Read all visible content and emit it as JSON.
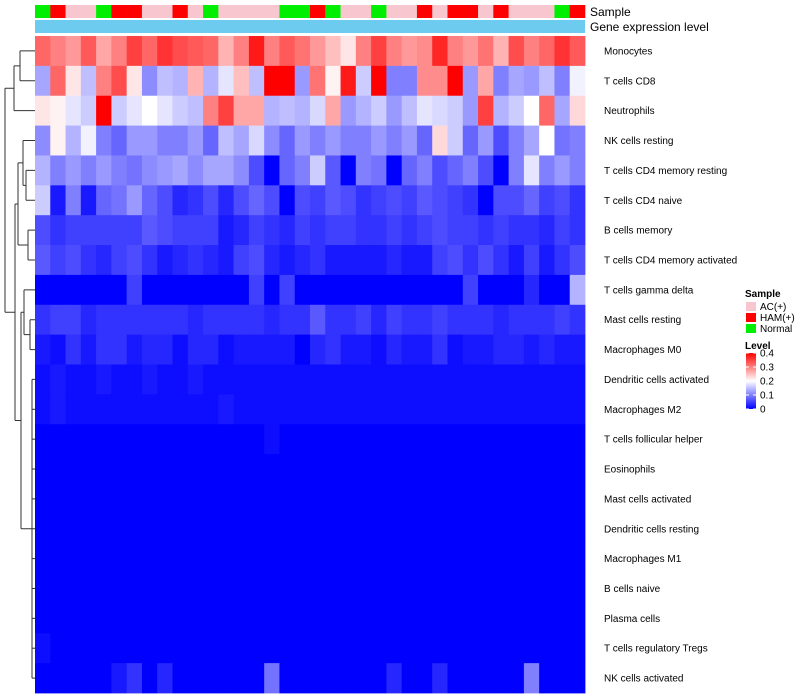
{
  "chart_data": {
    "type": "heatmap",
    "title": "",
    "annotation_labels": [
      "Sample",
      "Gene expression level"
    ],
    "sample_groups": [
      "Normal",
      "HAM(+)",
      "AC(+)",
      "AC(+)",
      "Normal",
      "HAM(+)",
      "HAM(+)",
      "AC(+)",
      "AC(+)",
      "HAM(+)",
      "AC(+)",
      "Normal",
      "AC(+)",
      "AC(+)",
      "AC(+)",
      "AC(+)",
      "Normal",
      "Normal",
      "HAM(+)",
      "Normal",
      "AC(+)",
      "AC(+)",
      "Normal",
      "AC(+)",
      "AC(+)",
      "HAM(+)",
      "AC(+)",
      "HAM(+)",
      "HAM(+)",
      "AC(+)",
      "HAM(+)",
      "AC(+)",
      "AC(+)",
      "AC(+)",
      "Normal",
      "HAM(+)"
    ],
    "group_colors": {
      "AC(+)": "#f7c6ce",
      "HAM(+)": "#ff0000",
      "Normal": "#00ee00"
    },
    "annotation_bar_color": "#6ecbf0",
    "rows": [
      "Monocytes",
      "T cells CD8",
      "Neutrophils",
      "NK cells resting",
      "T cells CD4 memory resting",
      "T cells CD4 naive",
      "B cells memory",
      "T cells CD4 memory activated",
      "T cells gamma delta",
      "Mast cells resting",
      "Macrophages M0",
      "Dendritic cells activated",
      "Macrophages M2",
      "T cells follicular helper",
      "Eosinophils",
      "Mast cells activated",
      "Dendritic cells resting",
      "Macrophages M1",
      "B cells naive",
      "Plasma cells",
      "T cells regulatory  Tregs",
      "NK cells activated"
    ],
    "values": [
      [
        0.32,
        0.3,
        0.28,
        0.33,
        0.27,
        0.3,
        0.35,
        0.32,
        0.36,
        0.34,
        0.33,
        0.32,
        0.26,
        0.3,
        0.38,
        0.3,
        0.33,
        0.31,
        0.28,
        0.25,
        0.22,
        0.3,
        0.35,
        0.3,
        0.28,
        0.29,
        0.37,
        0.3,
        0.28,
        0.31,
        0.26,
        0.34,
        0.3,
        0.32,
        0.36,
        0.33
      ],
      [
        0.13,
        0.32,
        0.22,
        0.15,
        0.3,
        0.34,
        0.22,
        0.11,
        0.15,
        0.14,
        0.26,
        0.14,
        0.18,
        0.25,
        0.15,
        0.4,
        0.4,
        0.12,
        0.31,
        0.21,
        0.38,
        0.16,
        0.4,
        0.1,
        0.1,
        0.29,
        0.29,
        0.4,
        0.12,
        0.27,
        0.1,
        0.13,
        0.12,
        0.15,
        0.1,
        0.19
      ],
      [
        0.22,
        0.21,
        0.18,
        0.16,
        0.4,
        0.16,
        0.18,
        0.2,
        0.18,
        0.16,
        0.15,
        0.3,
        0.35,
        0.27,
        0.27,
        0.14,
        0.15,
        0.14,
        0.17,
        0.27,
        0.12,
        0.14,
        0.16,
        0.12,
        0.15,
        0.18,
        0.17,
        0.16,
        0.12,
        0.35,
        0.14,
        0.16,
        0.2,
        0.32,
        0.13,
        0.23
      ],
      [
        0.11,
        0.21,
        0.14,
        0.19,
        0.1,
        0.08,
        0.12,
        0.12,
        0.1,
        0.1,
        0.12,
        0.08,
        0.15,
        0.13,
        0.17,
        0.11,
        0.08,
        0.12,
        0.1,
        0.12,
        0.1,
        0.1,
        0.12,
        0.1,
        0.12,
        0.08,
        0.23,
        0.16,
        0.08,
        0.12,
        0.06,
        0.1,
        0.13,
        0.2,
        0.09,
        0.1
      ],
      [
        0.14,
        0.1,
        0.12,
        0.1,
        0.12,
        0.1,
        0.09,
        0.11,
        0.12,
        0.13,
        0.11,
        0.13,
        0.13,
        0.11,
        0.06,
        0.0,
        0.08,
        0.1,
        0.16,
        0.07,
        0.0,
        0.1,
        0.09,
        0.0,
        0.08,
        0.1,
        0.06,
        0.08,
        0.1,
        0.06,
        0.0,
        0.1,
        0.18,
        0.1,
        0.12,
        0.1
      ],
      [
        0.16,
        0.02,
        0.1,
        0.02,
        0.08,
        0.09,
        0.12,
        0.08,
        0.06,
        0.03,
        0.04,
        0.06,
        0.03,
        0.06,
        0.08,
        0.06,
        0.0,
        0.06,
        0.05,
        0.07,
        0.06,
        0.04,
        0.05,
        0.06,
        0.05,
        0.07,
        0.06,
        0.05,
        0.04,
        0.0,
        0.06,
        0.06,
        0.08,
        0.05,
        0.06,
        0.04
      ],
      [
        0.06,
        0.04,
        0.05,
        0.05,
        0.05,
        0.05,
        0.05,
        0.07,
        0.06,
        0.05,
        0.05,
        0.05,
        0.02,
        0.03,
        0.05,
        0.04,
        0.03,
        0.05,
        0.04,
        0.05,
        0.05,
        0.04,
        0.04,
        0.05,
        0.04,
        0.05,
        0.06,
        0.05,
        0.05,
        0.04,
        0.05,
        0.04,
        0.04,
        0.03,
        0.05,
        0.04
      ],
      [
        0.07,
        0.05,
        0.06,
        0.04,
        0.03,
        0.05,
        0.06,
        0.04,
        0.02,
        0.03,
        0.04,
        0.03,
        0.02,
        0.05,
        0.06,
        0.03,
        0.02,
        0.03,
        0.04,
        0.02,
        0.02,
        0.02,
        0.02,
        0.03,
        0.02,
        0.02,
        0.05,
        0.06,
        0.04,
        0.06,
        0.04,
        0.02,
        0.05,
        0.02,
        0.04,
        0.06
      ],
      [
        0.0,
        0.0,
        0.0,
        0.0,
        0.0,
        0.0,
        0.05,
        0.0,
        0.0,
        0.0,
        0.0,
        0.0,
        0.0,
        0.0,
        0.05,
        0.0,
        0.05,
        0.0,
        0.0,
        0.0,
        0.0,
        0.0,
        0.0,
        0.0,
        0.0,
        0.0,
        0.0,
        0.0,
        0.05,
        0.0,
        0.0,
        0.0,
        0.03,
        0.0,
        0.0,
        0.14
      ],
      [
        0.04,
        0.05,
        0.05,
        0.03,
        0.04,
        0.04,
        0.04,
        0.04,
        0.04,
        0.04,
        0.03,
        0.04,
        0.04,
        0.04,
        0.04,
        0.03,
        0.04,
        0.04,
        0.07,
        0.04,
        0.04,
        0.05,
        0.03,
        0.05,
        0.04,
        0.04,
        0.05,
        0.04,
        0.04,
        0.04,
        0.03,
        0.04,
        0.04,
        0.04,
        0.05,
        0.04
      ],
      [
        0.02,
        0.01,
        0.04,
        0.02,
        0.04,
        0.04,
        0.02,
        0.03,
        0.03,
        0.01,
        0.03,
        0.03,
        0.01,
        0.02,
        0.02,
        0.02,
        0.02,
        0.0,
        0.03,
        0.04,
        0.02,
        0.02,
        0.01,
        0.03,
        0.02,
        0.02,
        0.04,
        0.01,
        0.02,
        0.02,
        0.03,
        0.03,
        0.02,
        0.03,
        0.02,
        0.02
      ],
      [
        0.01,
        0.02,
        0.01,
        0.01,
        0.02,
        0.01,
        0.01,
        0.02,
        0.01,
        0.01,
        0.02,
        0.01,
        0.01,
        0.01,
        0.01,
        0.01,
        0.01,
        0.01,
        0.01,
        0.01,
        0.01,
        0.01,
        0.01,
        0.01,
        0.01,
        0.01,
        0.01,
        0.01,
        0.01,
        0.01,
        0.01,
        0.01,
        0.01,
        0.01,
        0.01,
        0.01
      ],
      [
        0.01,
        0.02,
        0.01,
        0.01,
        0.01,
        0.01,
        0.01,
        0.01,
        0.01,
        0.01,
        0.01,
        0.01,
        0.02,
        0.01,
        0.01,
        0.01,
        0.01,
        0.01,
        0.01,
        0.01,
        0.01,
        0.01,
        0.01,
        0.01,
        0.01,
        0.01,
        0.01,
        0.01,
        0.01,
        0.01,
        0.01,
        0.01,
        0.01,
        0.01,
        0.01,
        0.01
      ],
      [
        0.0,
        0.0,
        0.0,
        0.0,
        0.0,
        0.0,
        0.0,
        0.0,
        0.0,
        0.0,
        0.0,
        0.0,
        0.0,
        0.0,
        0.0,
        0.01,
        0.0,
        0.0,
        0.0,
        0.0,
        0.0,
        0.0,
        0.0,
        0.0,
        0.0,
        0.0,
        0.0,
        0.0,
        0.0,
        0.0,
        0.0,
        0.0,
        0.0,
        0.0,
        0.0,
        0.0
      ],
      [
        0.0,
        0.0,
        0.0,
        0.0,
        0.0,
        0.0,
        0.0,
        0.0,
        0.0,
        0.0,
        0.0,
        0.0,
        0.0,
        0.0,
        0.0,
        0.0,
        0.0,
        0.0,
        0.0,
        0.0,
        0.0,
        0.0,
        0.0,
        0.0,
        0.0,
        0.0,
        0.0,
        0.0,
        0.0,
        0.0,
        0.0,
        0.0,
        0.0,
        0.0,
        0.0,
        0.0
      ],
      [
        0.0,
        0.0,
        0.0,
        0.0,
        0.0,
        0.0,
        0.0,
        0.0,
        0.0,
        0.0,
        0.0,
        0.0,
        0.0,
        0.0,
        0.0,
        0.0,
        0.0,
        0.0,
        0.0,
        0.0,
        0.0,
        0.0,
        0.0,
        0.0,
        0.0,
        0.0,
        0.0,
        0.0,
        0.0,
        0.0,
        0.0,
        0.0,
        0.0,
        0.0,
        0.0,
        0.0
      ],
      [
        0.0,
        0.0,
        0.0,
        0.0,
        0.0,
        0.0,
        0.0,
        0.0,
        0.0,
        0.0,
        0.0,
        0.0,
        0.0,
        0.0,
        0.0,
        0.0,
        0.0,
        0.0,
        0.0,
        0.0,
        0.0,
        0.0,
        0.0,
        0.0,
        0.0,
        0.0,
        0.0,
        0.0,
        0.0,
        0.0,
        0.0,
        0.0,
        0.0,
        0.0,
        0.0,
        0.0
      ],
      [
        0.0,
        0.0,
        0.0,
        0.0,
        0.0,
        0.0,
        0.0,
        0.0,
        0.0,
        0.0,
        0.0,
        0.0,
        0.0,
        0.0,
        0.0,
        0.0,
        0.0,
        0.0,
        0.0,
        0.0,
        0.0,
        0.0,
        0.0,
        0.0,
        0.0,
        0.0,
        0.0,
        0.0,
        0.0,
        0.0,
        0.0,
        0.0,
        0.0,
        0.0,
        0.0,
        0.0
      ],
      [
        0.0,
        0.0,
        0.0,
        0.0,
        0.0,
        0.0,
        0.0,
        0.0,
        0.0,
        0.0,
        0.0,
        0.0,
        0.0,
        0.0,
        0.0,
        0.0,
        0.0,
        0.0,
        0.0,
        0.0,
        0.0,
        0.0,
        0.0,
        0.0,
        0.0,
        0.0,
        0.0,
        0.0,
        0.0,
        0.0,
        0.0,
        0.0,
        0.0,
        0.0,
        0.0,
        0.0
      ],
      [
        0.0,
        0.0,
        0.0,
        0.0,
        0.0,
        0.0,
        0.0,
        0.0,
        0.0,
        0.0,
        0.0,
        0.0,
        0.0,
        0.0,
        0.0,
        0.0,
        0.0,
        0.0,
        0.0,
        0.0,
        0.0,
        0.0,
        0.0,
        0.0,
        0.0,
        0.0,
        0.0,
        0.0,
        0.0,
        0.0,
        0.0,
        0.0,
        0.0,
        0.0,
        0.0,
        0.0
      ],
      [
        0.01,
        0.0,
        0.0,
        0.0,
        0.0,
        0.0,
        0.0,
        0.0,
        0.0,
        0.0,
        0.0,
        0.0,
        0.0,
        0.0,
        0.0,
        0.0,
        0.0,
        0.0,
        0.0,
        0.0,
        0.0,
        0.0,
        0.0,
        0.0,
        0.0,
        0.0,
        0.0,
        0.0,
        0.0,
        0.0,
        0.0,
        0.0,
        0.0,
        0.0,
        0.0,
        0.0
      ],
      [
        0.0,
        0.0,
        0.0,
        0.0,
        0.0,
        0.02,
        0.04,
        0.0,
        0.03,
        0.0,
        0.0,
        0.0,
        0.0,
        0.0,
        0.0,
        0.09,
        0.0,
        0.0,
        0.0,
        0.0,
        0.0,
        0.0,
        0.0,
        0.03,
        0.0,
        0.0,
        0.03,
        0.0,
        0.0,
        0.0,
        0.0,
        0.0,
        0.1,
        0.0,
        0.0,
        0.0
      ]
    ],
    "legend_sample": {
      "title": "Sample",
      "entries": [
        "AC(+)",
        "HAM(+)",
        "Normal"
      ]
    },
    "legend_level": {
      "title": "Level",
      "ticks": [
        0.4,
        0.3,
        0.2,
        0.1,
        0
      ],
      "tick_labels": [
        "0.4",
        "0.3",
        "0.2",
        "0.1",
        "0"
      ],
      "range": [
        0,
        0.4
      ],
      "colors": [
        "#0000ff",
        "#ffffff",
        "#ff0000"
      ]
    }
  }
}
